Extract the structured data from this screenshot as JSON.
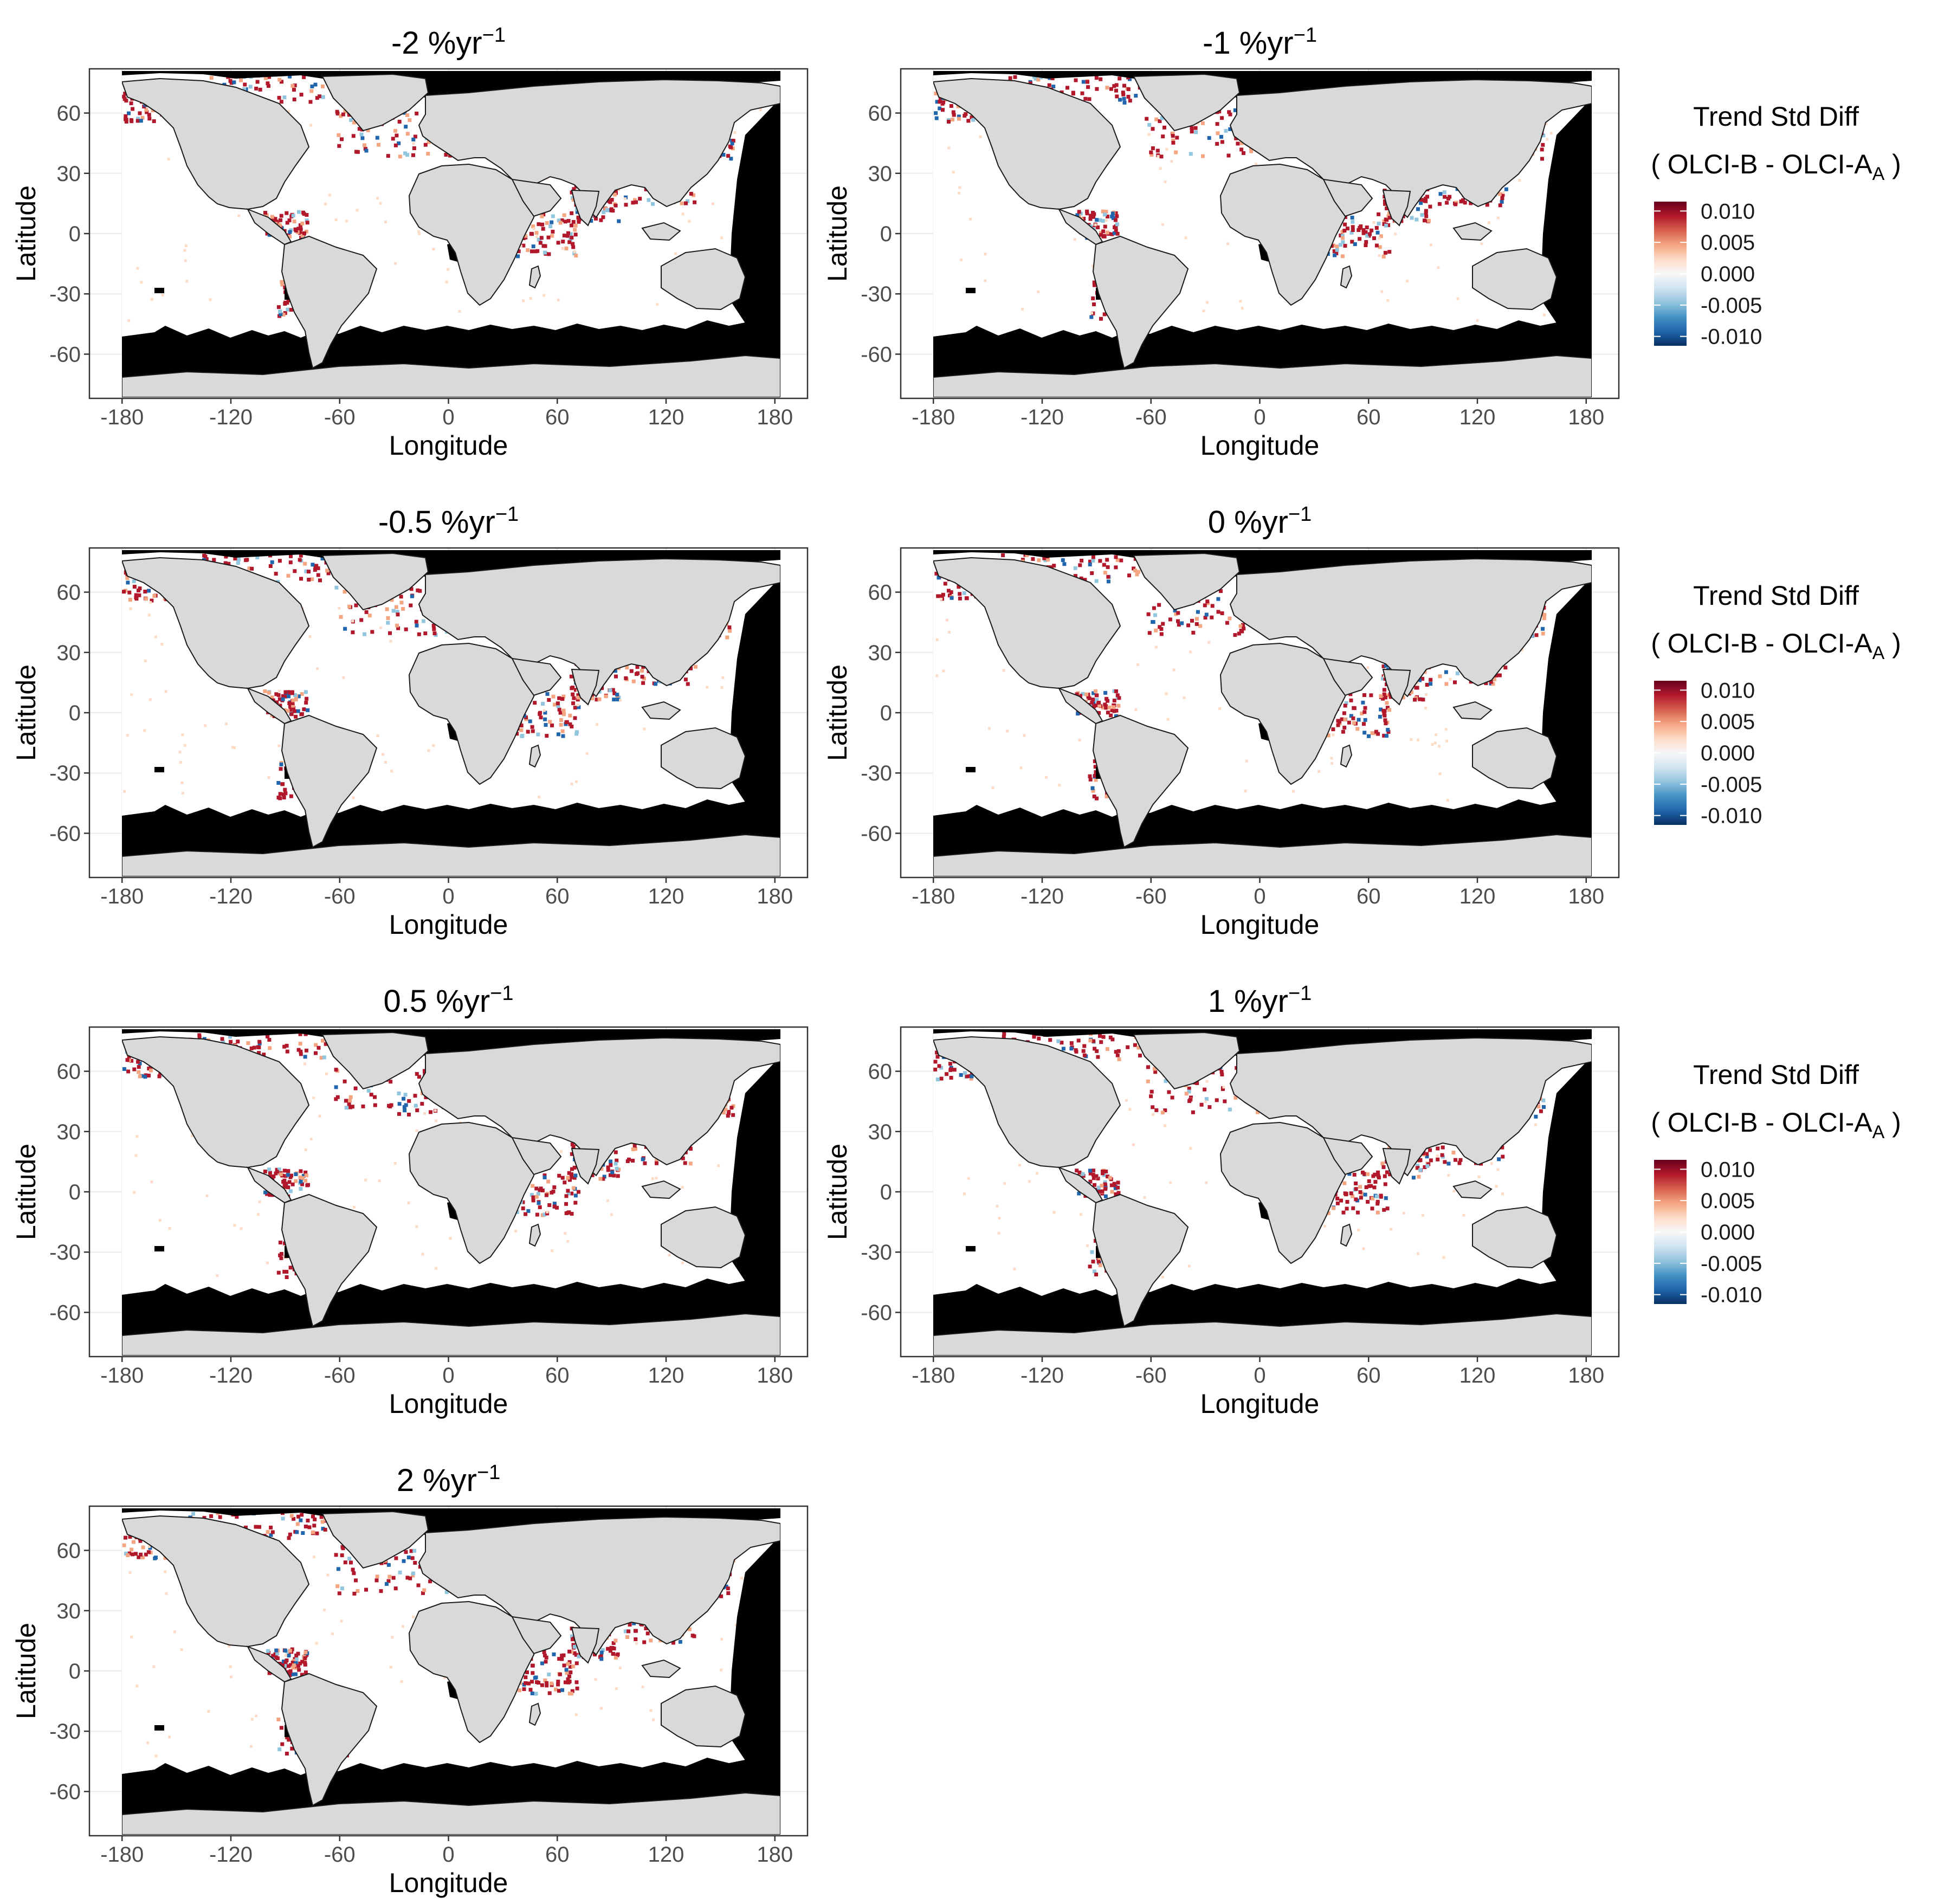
{
  "figure": {
    "panels": [
      {
        "id": "m2",
        "title_main": "-2 %yr",
        "title_exp": "−1",
        "legend": false
      },
      {
        "id": "m1",
        "title_main": "-1 %yr",
        "title_exp": "−1",
        "legend": true
      },
      {
        "id": "m05",
        "title_main": "-0.5 %yr",
        "title_exp": "−1",
        "legend": false
      },
      {
        "id": "z0",
        "title_main": "0 %yr",
        "title_exp": "−1",
        "legend": true
      },
      {
        "id": "p05",
        "title_main": "0.5 %yr",
        "title_exp": "−1",
        "legend": false
      },
      {
        "id": "p1",
        "title_main": "1 %yr",
        "title_exp": "−1",
        "legend": true
      },
      {
        "id": "p2",
        "title_main": "2 %yr",
        "title_exp": "−1",
        "legend": false
      }
    ],
    "x_axis": {
      "label": "Longitude",
      "ticks": [
        "-180",
        "-120",
        "-60",
        "0",
        "60",
        "120",
        "180"
      ],
      "tick_values": [
        -180,
        -120,
        -60,
        0,
        60,
        120,
        180
      ],
      "range": [
        -198,
        198
      ]
    },
    "y_axis": {
      "label": "Latitude",
      "ticks": [
        "60",
        "30",
        "0",
        "-30",
        "-60"
      ],
      "tick_values": [
        60,
        30,
        0,
        -30,
        -60
      ],
      "range": [
        -82,
        82
      ]
    },
    "legend": {
      "title_line1": "Trend Std Diff",
      "title_line2_prefix": "( OLCI-B  - OLCI-A",
      "title_line2_sub": "A",
      "title_line2_suffix": " )",
      "ticks": [
        "0.010",
        "0.005",
        "0.000",
        "-0.005",
        "-0.010"
      ],
      "tick_values": [
        0.01,
        0.005,
        0.0,
        -0.005,
        -0.01
      ],
      "range": [
        -0.0115,
        0.0115
      ],
      "colors": [
        "#053061",
        "#2166ac",
        "#4393c3",
        "#92c5de",
        "#d1e5f0",
        "#f7f7f7",
        "#fddbc7",
        "#f4a582",
        "#d6604d",
        "#b2182b",
        "#67001f"
      ]
    },
    "colors": {
      "land": "#d9d9d9",
      "no_data": "#000000",
      "ocean": "#ffffff",
      "positive": "#b2182b",
      "negative": "#2166ac",
      "frame": "#333333",
      "grid": "#ebebeb"
    }
  }
}
